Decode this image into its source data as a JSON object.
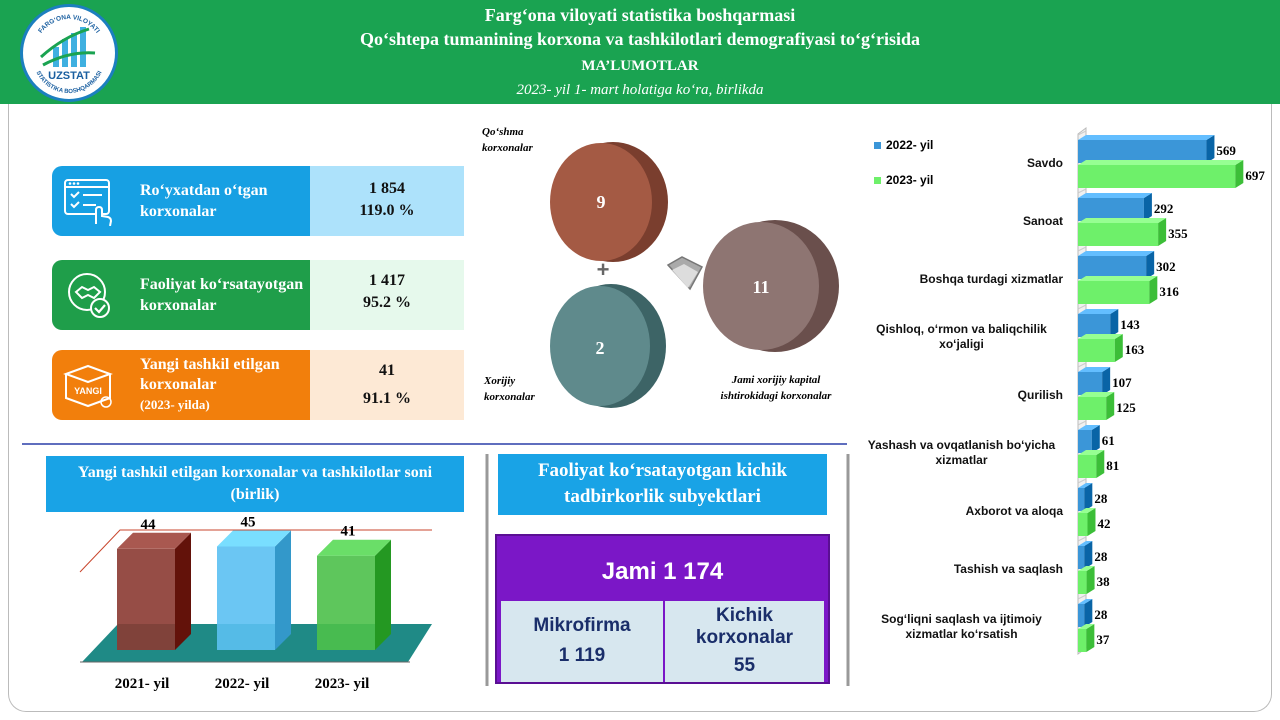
{
  "header": {
    "line1": "Farg‘ona viloyati statistika boshqarmasi",
    "line2": "Qo‘shtepa tumanining korxona va tashkilotlari demografiyasi to‘g‘risida",
    "line3": "MA’LUMOTLAR",
    "line4": "2023- yil 1- mart holatiga ko‘ra, birlikda",
    "logo_text": "UZSTAT",
    "logo_ring_top": "FARG‘ONA VILOYATI",
    "logo_ring_bottom": "STATISTIKA BOSHQARMASI"
  },
  "cards": [
    {
      "label": "Ro‘yxatdan o‘tgan korxonalar",
      "sublabel": "",
      "value": "1 854",
      "percent": "119.0 %",
      "color": "#17a0e3",
      "panel": "#ade2fb",
      "icon": "checklist-icon"
    },
    {
      "label": "Faoliyat ko‘rsatayotgan korxonalar",
      "sublabel": "",
      "value": "1 417",
      "percent": "95.2 %",
      "color": "#1f9e4a",
      "panel": "#e6f9ec",
      "icon": "handshake-icon"
    },
    {
      "label": "Yangi tashkil etilgan korxonalar",
      "sublabel": "(2023- yilda)",
      "value": "41",
      "percent": "91.1 %",
      "color": "#f27f0c",
      "panel": "#fde9d5",
      "icon": "box-icon",
      "icon_text": "YANGI"
    }
  ],
  "circles": {
    "joint": {
      "label": "Qo‘shma korxonalar",
      "value": "9",
      "color": "#a45a44"
    },
    "foreign": {
      "label": "Xorijiy korxonalar",
      "value": "2",
      "color": "#5f8a8c"
    },
    "total": {
      "label": "Jami xorijiy kapital ishtirokidagi korxonalar",
      "value": "11",
      "color": "#8e7572"
    },
    "plus_symbol": "+"
  },
  "new_chart": {
    "title": "Yangi tashkil etilgan korxonalar va tashkilotlar soni (birlik)",
    "chart_data": {
      "type": "bar",
      "categories": [
        "2021- yil",
        "2022- yil",
        "2023- yil"
      ],
      "values": [
        44,
        45,
        41
      ],
      "colors": [
        "#8b3a32",
        "#5bc0f2",
        "#4cc04a"
      ],
      "ylim": [
        0,
        50
      ]
    }
  },
  "small_business": {
    "title": "Faoliyat ko‘rsatayotgan kichik tadbirkorlik subyektlari",
    "total": "Jami 1 174",
    "micro_label": "Mikrofirma",
    "micro_value": "1 119",
    "small_label": "Kichik korxonalar",
    "small_value": "55",
    "color": "#7b17c7"
  },
  "sector_chart": {
    "chart_data": {
      "type": "bar",
      "orientation": "horizontal",
      "categories": [
        "Savdo",
        "Sanoat",
        "Boshqa turdagi xizmatlar",
        "Qishloq, o‘rmon va baliqchilik xo‘jaligi",
        "Qurilish",
        "Yashash va ovqatlanish bo‘yicha xizmatlar",
        "Axborot va aloqa",
        "Tashish va saqlash",
        "Sog‘liqni saqlash va ijtimoiy xizmatlar ko‘rsatish"
      ],
      "series": [
        {
          "name": "2022- yil",
          "values": [
            569,
            292,
            302,
            143,
            107,
            61,
            28,
            28,
            28
          ],
          "color": "#3b96d8"
        },
        {
          "name": "2023- yil",
          "values": [
            697,
            355,
            316,
            163,
            125,
            81,
            42,
            38,
            37
          ],
          "color": "#6ef06a"
        }
      ],
      "xlim": [
        0,
        700
      ],
      "legend": "top-left"
    }
  }
}
